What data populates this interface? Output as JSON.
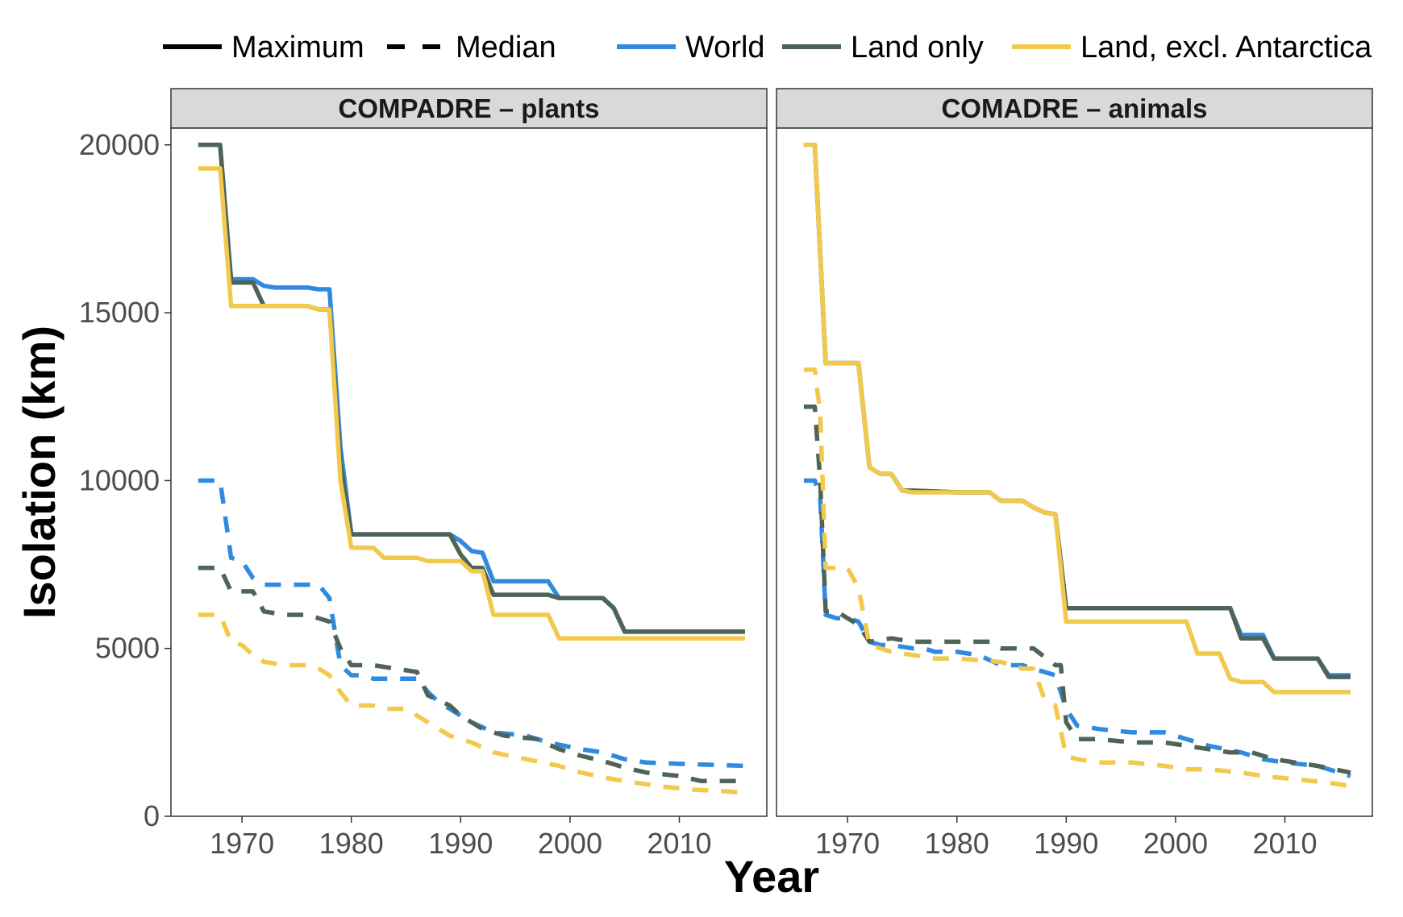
{
  "chart_data": {
    "type": "line",
    "xlabel": "Year",
    "ylabel": "Isolation (km)",
    "xlim": [
      1963.5,
      2018
    ],
    "ylim": [
      0,
      20500
    ],
    "x_ticks": [
      1970,
      1980,
      1990,
      2000,
      2010
    ],
    "x_tick_labels": [
      "1970",
      "1980",
      "1990",
      "2000",
      "2010"
    ],
    "y_ticks": [
      0,
      5000,
      10000,
      15000,
      20000
    ],
    "y_tick_labels": [
      "0",
      "5000",
      "10000",
      "15000",
      "20000"
    ],
    "grid": false,
    "legend": {
      "position": "top",
      "linetypes": [
        {
          "label": "Maximum",
          "dash": "solid"
        },
        {
          "label": "Median",
          "dash": "dashed"
        }
      ],
      "series": [
        {
          "label": "World",
          "color": "#2f8ae0"
        },
        {
          "label": "Land only",
          "color": "#4e6457"
        },
        {
          "label": "Land, excl. Antarctica",
          "color": "#f2c94c"
        }
      ]
    },
    "panels": [
      {
        "title": "COMPADRE – plants",
        "series": [
          {
            "name": "World",
            "stat": "Median",
            "color": "#2f8ae0",
            "dash": "dashed",
            "x": [
              1966,
              1968,
              1969,
              1970,
              1971,
              1972,
              1973,
              1974,
              1975,
              1976,
              1977,
              1978,
              1979,
              1980,
              1981,
              1982,
              1984,
              1986,
              1987,
              1988,
              1989,
              1991,
              1993,
              1996,
              1998,
              2001,
              2003,
              2005,
              2007,
              2011,
              2016
            ],
            "y": [
              10000,
              10000,
              7700,
              7600,
              7100,
              6900,
              6900,
              6900,
              6900,
              6900,
              6900,
              6500,
              4500,
              4200,
              4200,
              4100,
              4100,
              4100,
              3700,
              3400,
              3200,
              2800,
              2500,
              2400,
              2200,
              2000,
              1900,
              1700,
              1600,
              1550,
              1500
            ]
          },
          {
            "name": "Land only",
            "stat": "Median",
            "color": "#4e6457",
            "dash": "dashed",
            "x": [
              1966,
              1968,
              1969,
              1971,
              1972,
              1974,
              1976,
              1977,
              1978,
              1979,
              1980,
              1982,
              1984,
              1986,
              1987,
              1989,
              1990,
              1992,
              1994,
              1997,
              1999,
              2001,
              2003,
              2005,
              2007,
              2010,
              2012,
              2016
            ],
            "y": [
              7400,
              7400,
              6700,
              6700,
              6100,
              6000,
              6000,
              5900,
              5800,
              5000,
              4500,
              4500,
              4400,
              4300,
              3600,
              3300,
              3000,
              2600,
              2400,
              2300,
              2000,
              1800,
              1650,
              1450,
              1300,
              1200,
              1050,
              1050
            ]
          },
          {
            "name": "Land, excl. Antarctica",
            "stat": "Median",
            "color": "#f2c94c",
            "dash": "dashed",
            "x": [
              1966,
              1968,
              1969,
              1970,
              1971,
              1972,
              1974,
              1976,
              1977,
              1978,
              1979,
              1980,
              1982,
              1983,
              1985,
              1987,
              1989,
              1991,
              1993,
              1996,
              1999,
              2001,
              2004,
              2006,
              2008,
              2011,
              2014,
              2016
            ],
            "y": [
              6000,
              6000,
              5200,
              5100,
              4800,
              4600,
              4500,
              4500,
              4400,
              4200,
              3700,
              3300,
              3300,
              3200,
              3200,
              2800,
              2400,
              2200,
              1900,
              1700,
              1500,
              1300,
              1100,
              1000,
              900,
              800,
              750,
              700
            ]
          },
          {
            "name": "World",
            "stat": "Maximum",
            "color": "#2f8ae0",
            "dash": "solid",
            "x": [
              1966,
              1968,
              1969,
              1971,
              1972,
              1973,
              1976,
              1977,
              1978,
              1979,
              1980,
              1989,
              1990,
              1991,
              1992,
              1993,
              1998,
              1999,
              2003,
              2004,
              2005,
              2016
            ],
            "y": [
              20000,
              20000,
              16000,
              16000,
              15800,
              15750,
              15750,
              15700,
              15700,
              11000,
              8400,
              8400,
              8200,
              7900,
              7850,
              7000,
              7000,
              6500,
              6500,
              6200,
              5500,
              5500
            ]
          },
          {
            "name": "Land only",
            "stat": "Maximum",
            "color": "#4e6457",
            "dash": "solid",
            "x": [
              1966,
              1968,
              1969,
              1971,
              1972,
              1976,
              1977,
              1978,
              1979,
              1980,
              1988,
              1989,
              1990,
              1991,
              1992,
              1993,
              1998,
              1999,
              2003,
              2004,
              2005,
              2016
            ],
            "y": [
              20000,
              20000,
              15900,
              15900,
              15200,
              15200,
              15100,
              15100,
              10500,
              8400,
              8400,
              8400,
              7800,
              7400,
              7400,
              6600,
              6600,
              6500,
              6500,
              6200,
              5500,
              5500
            ]
          },
          {
            "name": "Land, excl. Antarctica",
            "stat": "Maximum",
            "color": "#f2c94c",
            "dash": "solid",
            "x": [
              1966,
              1968,
              1969,
              1972,
              1976,
              1977,
              1978,
              1979,
              1980,
              1982,
              1983,
              1986,
              1987,
              1990,
              1991,
              1992,
              1993,
              1998,
              1999,
              2003,
              2016
            ],
            "y": [
              19300,
              19300,
              15200,
              15200,
              15200,
              15100,
              15100,
              10000,
              8000,
              8000,
              7700,
              7700,
              7600,
              7600,
              7300,
              7300,
              6000,
              6000,
              5300,
              5300,
              5300
            ]
          }
        ]
      },
      {
        "title": "COMADRE – animals",
        "series": [
          {
            "name": "World",
            "stat": "Median",
            "color": "#2f8ae0",
            "dash": "dashed",
            "x": [
              1966,
              1967,
              1967.5,
              1968,
              1969,
              1970,
              1971,
              1972,
              1973,
              1974,
              1976,
              1977,
              1978,
              1980,
              1982,
              1984,
              1986,
              1988,
              1989,
              1990,
              1991,
              1993,
              1996,
              1999,
              2001,
              2003,
              2006,
              2008,
              2010,
              2013,
              2016
            ],
            "y": [
              10000,
              10000,
              9500,
              6000,
              5900,
              5900,
              5800,
              5200,
              5100,
              5100,
              5000,
              5000,
              4900,
              4900,
              4800,
              4500,
              4500,
              4300,
              4200,
              3200,
              2700,
              2600,
              2500,
              2500,
              2300,
              2100,
              1900,
              1700,
              1600,
              1500,
              1200
            ]
          },
          {
            "name": "Land only",
            "stat": "Median",
            "color": "#4e6457",
            "dash": "dashed",
            "x": [
              1966,
              1967,
              1967.5,
              1968,
              1969,
              1971,
              1972,
              1974,
              1976,
              1978,
              1980,
              1983,
              1984,
              1986,
              1987,
              1989,
              1989.5,
              1990,
              1991,
              1993,
              1996,
              1999,
              2001,
              2003,
              2005,
              2007,
              2009,
              2011,
              2013,
              2016
            ],
            "y": [
              12200,
              12200,
              10000,
              6100,
              6100,
              5700,
              5200,
              5300,
              5200,
              5200,
              5200,
              5200,
              5000,
              5000,
              5000,
              4500,
              4500,
              2800,
              2300,
              2300,
              2200,
              2200,
              2100,
              2000,
              1900,
              1900,
              1700,
              1600,
              1500,
              1300
            ]
          },
          {
            "name": "Land, excl. Antarctica",
            "stat": "Median",
            "color": "#f2c94c",
            "dash": "dashed",
            "x": [
              1966,
              1967,
              1967.5,
              1968,
              1970,
              1971,
              1972,
              1974,
              1976,
              1978,
              1980,
              1984,
              1986,
              1987,
              1988,
              1989,
              1990,
              1991,
              1993,
              1996,
              1999,
              2001,
              2003,
              2006,
              2008,
              2011,
              2014,
              2016
            ],
            "y": [
              13300,
              13300,
              12000,
              7400,
              7400,
              6800,
              5100,
              4900,
              4800,
              4700,
              4700,
              4600,
              4400,
              4400,
              3500,
              3300,
              1800,
              1700,
              1600,
              1600,
              1500,
              1400,
              1400,
              1300,
              1200,
              1100,
              1000,
              900
            ]
          },
          {
            "name": "World",
            "stat": "Maximum",
            "color": "#2f8ae0",
            "dash": "solid",
            "x": [
              1966,
              1967,
              1968,
              1971,
              1972,
              1973,
              1974,
              1975,
              1976,
              1980,
              1983,
              1984,
              1985,
              1986,
              1987,
              1988,
              1989,
              1990,
              2005,
              2006,
              2008,
              2009,
              2013,
              2014,
              2016
            ],
            "y": [
              20000,
              20000,
              13500,
              13500,
              10400,
              10200,
              10200,
              9700,
              9700,
              9650,
              9650,
              9400,
              9400,
              9400,
              9200,
              9050,
              9000,
              6200,
              6200,
              5400,
              5400,
              4700,
              4700,
              4200,
              4200
            ]
          },
          {
            "name": "Land only",
            "stat": "Maximum",
            "color": "#4e6457",
            "dash": "solid",
            "x": [
              1966,
              1967,
              1968,
              1971,
              1972,
              1973,
              1974,
              1975,
              1976,
              1980,
              1983,
              1984,
              1985,
              1986,
              1987,
              1988,
              1989,
              1990,
              2005,
              2006,
              2008,
              2009,
              2013,
              2014,
              2016
            ],
            "y": [
              20000,
              20000,
              13500,
              13500,
              10400,
              10200,
              10200,
              9700,
              9700,
              9650,
              9650,
              9400,
              9400,
              9400,
              9200,
              9050,
              9000,
              6200,
              6200,
              5300,
              5300,
              4700,
              4700,
              4150,
              4150
            ]
          },
          {
            "name": "Land, excl. Antarctica",
            "stat": "Maximum",
            "color": "#f2c94c",
            "dash": "solid",
            "x": [
              1966,
              1967,
              1968,
              1971,
              1972,
              1973,
              1974,
              1975,
              1976,
              1980,
              1983,
              1984,
              1985,
              1986,
              1987,
              1988,
              1989,
              1990,
              2001,
              2002,
              2004,
              2005,
              2006,
              2008,
              2009,
              2016
            ],
            "y": [
              20000,
              20000,
              13500,
              13500,
              10400,
              10200,
              10200,
              9700,
              9650,
              9650,
              9650,
              9400,
              9400,
              9400,
              9200,
              9050,
              9000,
              5800,
              5800,
              4850,
              4850,
              4100,
              4000,
              4000,
              3700,
              3700
            ]
          }
        ]
      }
    ]
  }
}
